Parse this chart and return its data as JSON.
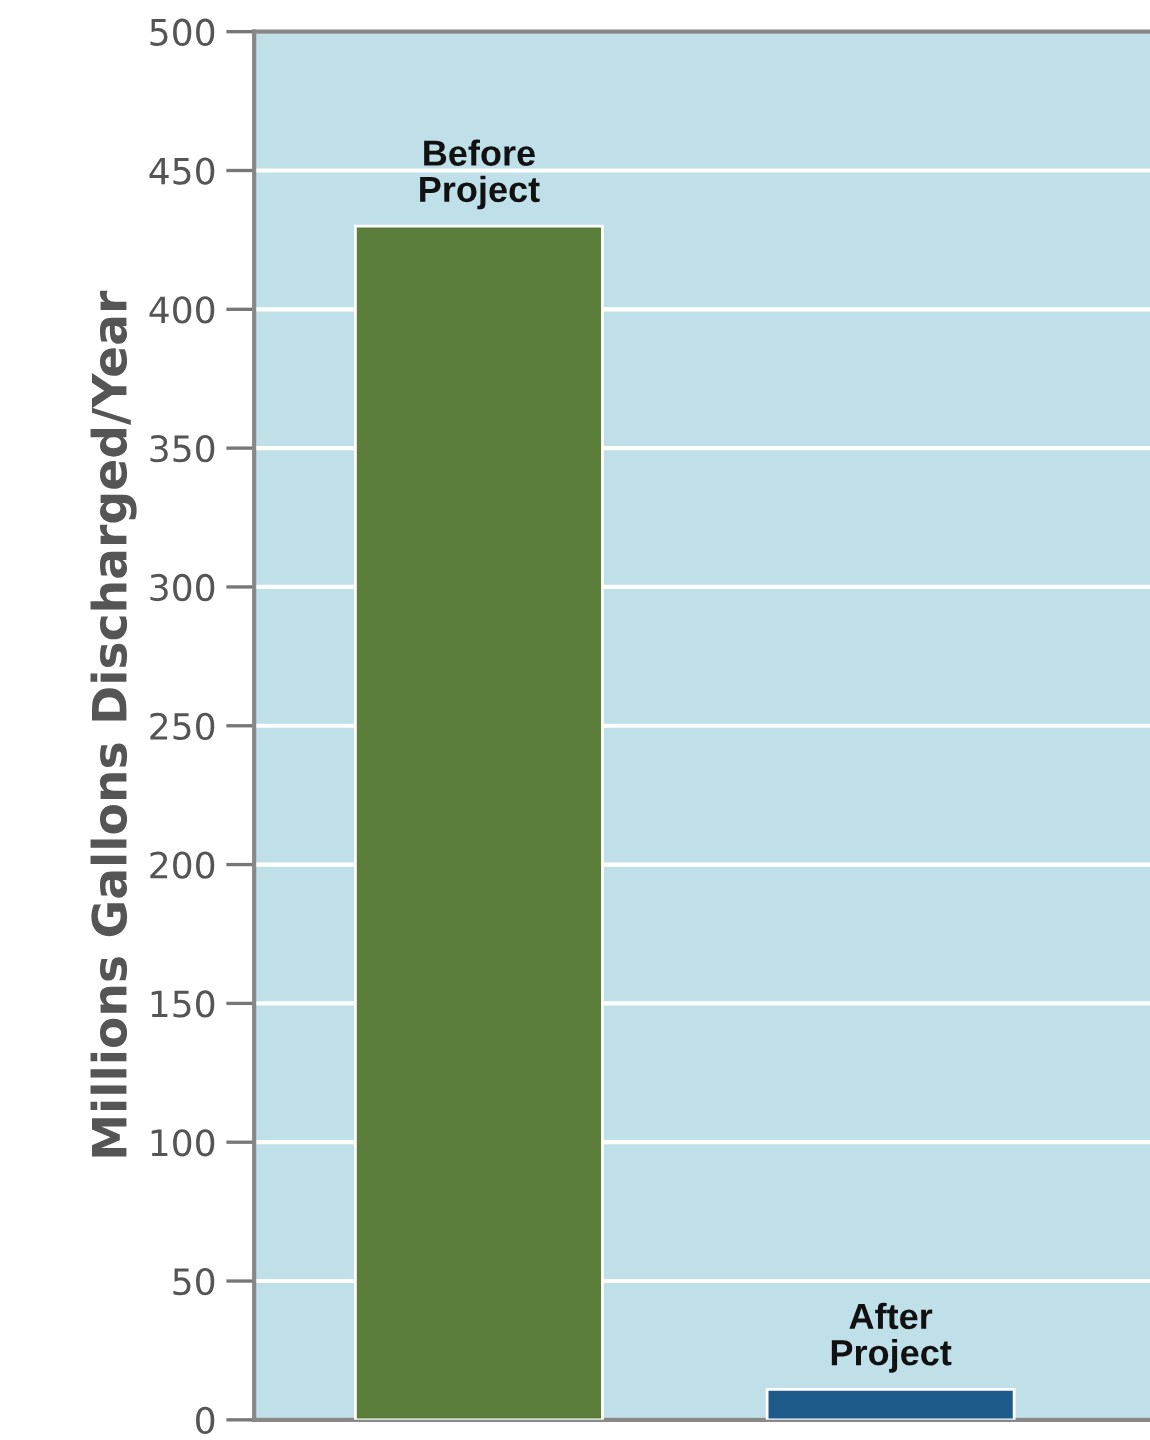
{
  "chart_data": {
    "type": "bar",
    "ylabel": "Millions Gallons Discharged/Year",
    "categories": [
      "Before\nProject",
      "After\nProject"
    ],
    "values": [
      430,
      11
    ],
    "colors": [
      "#5b7f3a",
      "#1e5a8a"
    ],
    "ylim": [
      0,
      500
    ],
    "yticks": [
      0,
      50,
      100,
      150,
      200,
      250,
      300,
      350,
      400,
      450,
      500
    ],
    "grid": "y",
    "legend": false
  }
}
